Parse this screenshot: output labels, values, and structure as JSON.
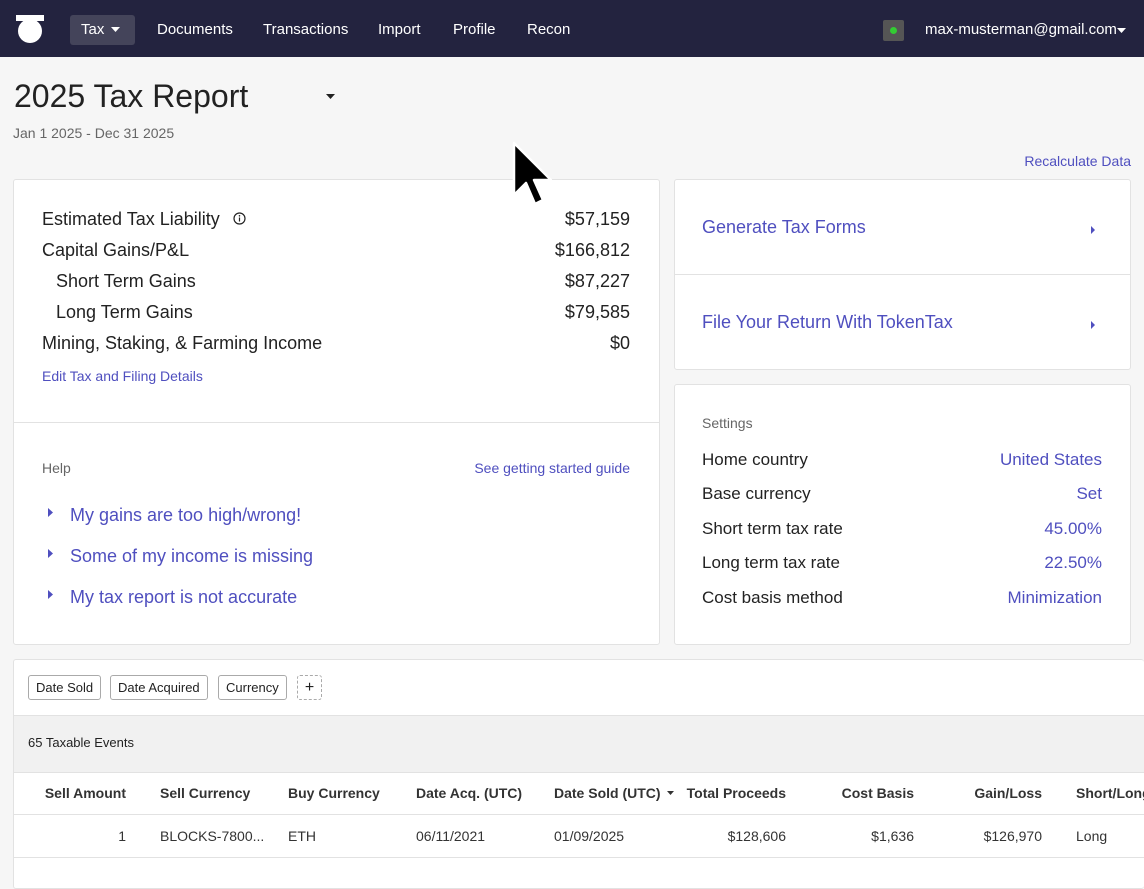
{
  "nav": {
    "tabs": [
      "Tax",
      "Documents",
      "Transactions",
      "Import",
      "Profile",
      "Recon"
    ],
    "email": "max-musterman@gmail.com"
  },
  "header": {
    "title": "2025 Tax Report",
    "date_range": "Jan 1 2025 - Dec 31 2025",
    "recalculate": "Recalculate Data"
  },
  "summary": {
    "rows": [
      {
        "label": "Estimated Tax Liability",
        "value": "$57,159"
      },
      {
        "label": "Capital Gains/P&L",
        "value": "$166,812"
      },
      {
        "label": "Short Term Gains",
        "value": "$87,227"
      },
      {
        "label": "Long Term Gains",
        "value": "$79,585"
      },
      {
        "label": "Mining, Staking, & Farming Income",
        "value": "$0"
      }
    ],
    "edit_link": "Edit Tax and Filing Details"
  },
  "help": {
    "title": "Help",
    "guide_link": "See getting started guide",
    "items": [
      "My gains are too high/wrong!",
      "Some of my income is missing",
      "My tax report is not accurate"
    ]
  },
  "actions": [
    "Generate Tax Forms",
    "File Your Return With TokenTax"
  ],
  "settings": {
    "title": "Settings",
    "rows": [
      {
        "label": "Home country",
        "value": "United States"
      },
      {
        "label": "Base currency",
        "value": "Set"
      },
      {
        "label": "Short term tax rate",
        "value": "45.00%"
      },
      {
        "label": "Long term tax rate",
        "value": "22.50%"
      },
      {
        "label": "Cost basis method",
        "value": "Minimization"
      }
    ]
  },
  "table": {
    "filters": [
      "Date Sold",
      "Date Acquired",
      "Currency"
    ],
    "add_filter": "+",
    "count": "65 Taxable Events",
    "columns": [
      "Sell Amount",
      "Sell Currency",
      "Buy Currency",
      "Date Acq. (UTC)",
      "Date Sold (UTC)",
      "Total Proceeds",
      "Cost Basis",
      "Gain/Loss",
      "Short/Long"
    ],
    "rows": [
      [
        "1",
        "BLOCKS-7800...",
        "ETH",
        "06/11/2021",
        "01/09/2025",
        "$128,606",
        "$1,636",
        "$126,970",
        "Long"
      ]
    ]
  }
}
